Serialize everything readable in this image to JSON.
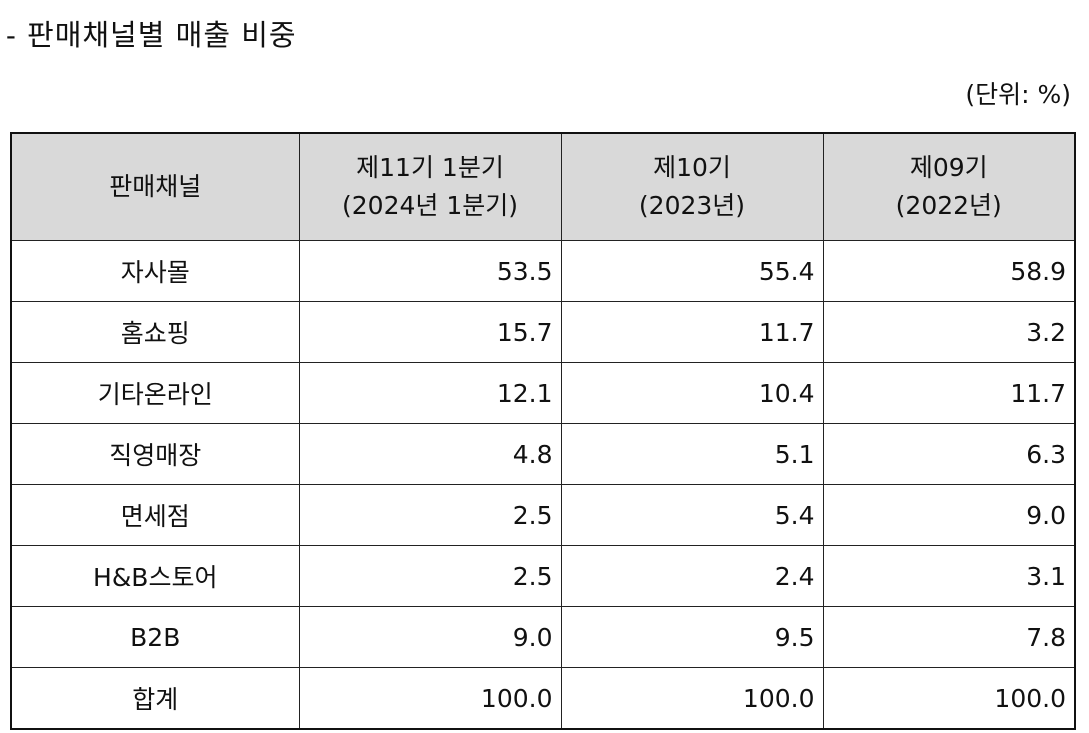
{
  "title": "- 판매채널별 매출 비중",
  "unit_note": "(단위: %)",
  "table": {
    "headers": {
      "channel": "판매채널",
      "col1_line1": "제11기 1분기",
      "col1_line2": "(2024년 1분기)",
      "col2_line1": "제10기",
      "col2_line2": "(2023년)",
      "col3_line1": "제09기",
      "col3_line2": "(2022년)"
    },
    "rows": [
      {
        "channel": "자사몰",
        "values": [
          "53.5",
          "55.4",
          "58.9"
        ]
      },
      {
        "channel": "홈쇼핑",
        "values": [
          "15.7",
          "11.7",
          "3.2"
        ]
      },
      {
        "channel": "기타온라인",
        "values": [
          "12.1",
          "10.4",
          "11.7"
        ]
      },
      {
        "channel": "직영매장",
        "values": [
          "4.8",
          "5.1",
          "6.3"
        ]
      },
      {
        "channel": "면세점",
        "values": [
          "2.5",
          "5.4",
          "9.0"
        ]
      },
      {
        "channel": "H&B스토어",
        "values": [
          "2.5",
          "2.4",
          "3.1"
        ]
      },
      {
        "channel": "B2B",
        "values": [
          "9.0",
          "9.5",
          "7.8"
        ]
      },
      {
        "channel": "합계",
        "values": [
          "100.0",
          "100.0",
          "100.0"
        ]
      }
    ]
  }
}
